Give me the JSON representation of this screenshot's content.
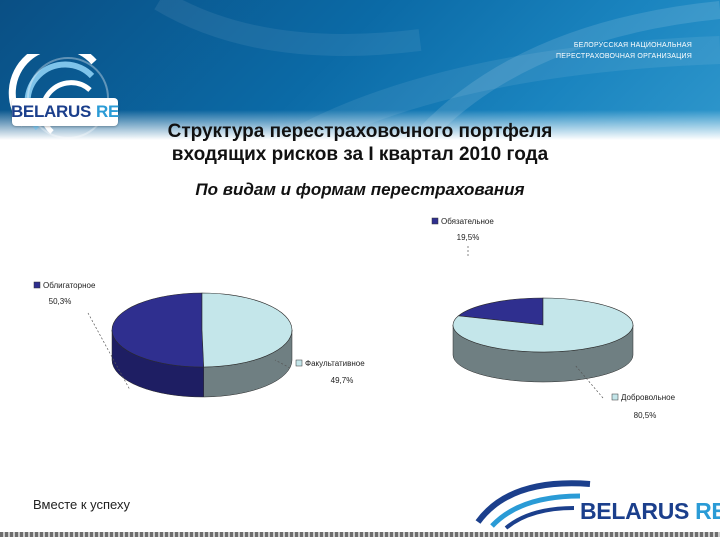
{
  "header": {
    "org_line1": "БЕЛОРУССКАЯ НАЦИОНАЛЬНАЯ",
    "org_line2": "ПЕРЕСТРАХОВОЧНАЯ ОРГАНИЗАЦИЯ",
    "logo_word1": "BELARUS",
    "logo_word2": "RE"
  },
  "slide": {
    "title_line1": "Структура перестраховочного портфеля",
    "title_line2": "входящих рисков за I квартал 2010 года",
    "subtitle": "По видам и формам перестрахования"
  },
  "colors": {
    "navy": "#2f2f8f",
    "light_cyan": "#c4e6ea",
    "gray_side": "#6f7f82"
  },
  "chart_data": [
    {
      "type": "pie",
      "slices": [
        {
          "label": "Облигаторное",
          "value_label": "50,3%",
          "value": 50.3,
          "color": "#2f2f8f",
          "side_color": "#1e1e63"
        },
        {
          "label": "Факультативное",
          "value_label": "49,7%",
          "value": 49.7,
          "color": "#c4e6ea",
          "side_color": "#6f7f82"
        }
      ]
    },
    {
      "type": "pie",
      "slices": [
        {
          "label": "Обязательное",
          "value_label": "19,5%",
          "value": 19.5,
          "color": "#2f2f8f",
          "side_color": "#1e1e63"
        },
        {
          "label": "Добровольное",
          "value_label": "80,5%",
          "value": 80.5,
          "color": "#c4e6ea",
          "side_color": "#6f7f82"
        }
      ]
    }
  ],
  "footer": {
    "slogan": "Вместе к успеху",
    "logo_word1": "BELARUS",
    "logo_word2": "RE"
  }
}
